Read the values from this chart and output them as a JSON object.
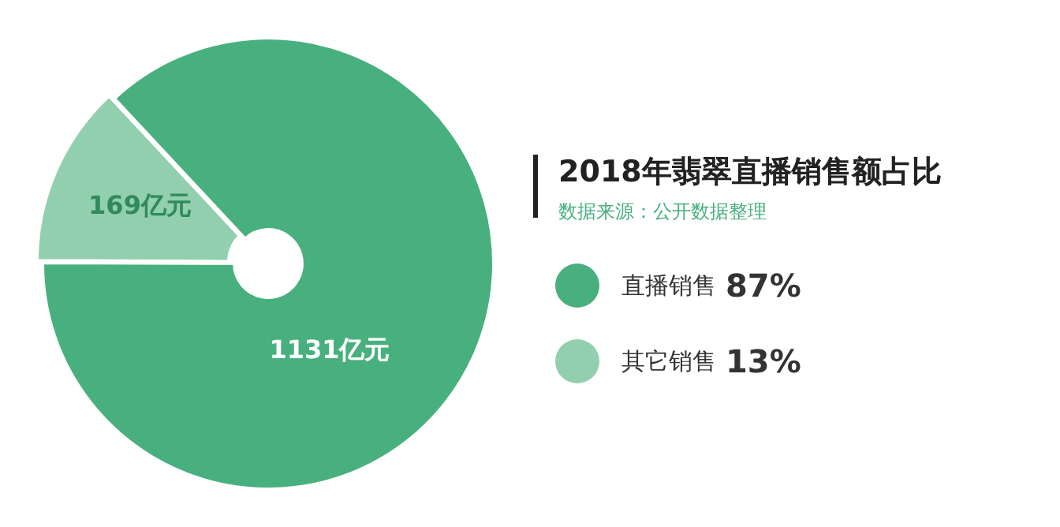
{
  "chart_data": {
    "type": "donut",
    "title": "2018年翡翠直播销售额占比",
    "subtitle": "数据来源：公开数据整理",
    "categories": [
      "直播销售",
      "其它销售"
    ],
    "values": [
      1131,
      169
    ],
    "value_labels": [
      "1131亿元",
      "169亿元"
    ],
    "colors": [
      "#48b07e",
      "#92cfae"
    ],
    "annotations": [
      "87%",
      "13%"
    ],
    "legend": "right"
  }
}
